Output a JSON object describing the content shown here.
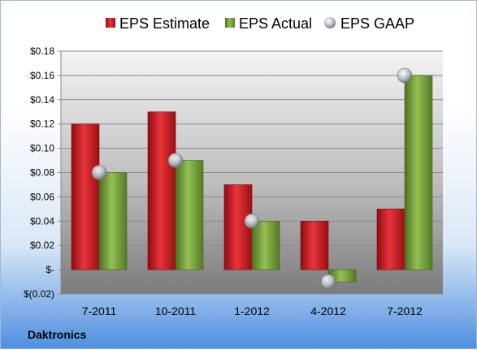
{
  "company": "Daktronics",
  "colors": {
    "estimate": "#c8161d",
    "actual": "#6e9a32",
    "gaap": "#b8bcc4",
    "plot_top": "#f2f2f2",
    "plot_bottom": "#7a7a7a"
  },
  "chart_data": {
    "type": "bar",
    "categories": [
      "7-2011",
      "10-2011",
      "1-2012",
      "4-2012",
      "7-2012"
    ],
    "series": [
      {
        "name": "EPS Estimate",
        "mark": "bar",
        "values": [
          0.12,
          0.13,
          0.07,
          0.04,
          0.05
        ]
      },
      {
        "name": "EPS Actual",
        "mark": "bar",
        "values": [
          0.08,
          0.09,
          0.04,
          -0.01,
          0.16
        ]
      },
      {
        "name": "EPS GAAP",
        "mark": "marker",
        "values": [
          0.08,
          0.09,
          0.04,
          -0.01,
          0.16
        ]
      }
    ],
    "yticks": [
      "$(0.02)",
      "$-",
      "$0.02",
      "$0.04",
      "$0.06",
      "$0.08",
      "$0.10",
      "$0.12",
      "$0.14",
      "$0.16",
      "$0.18"
    ],
    "ylim": [
      -0.02,
      0.18
    ],
    "legend_position": "top",
    "grid": true
  }
}
